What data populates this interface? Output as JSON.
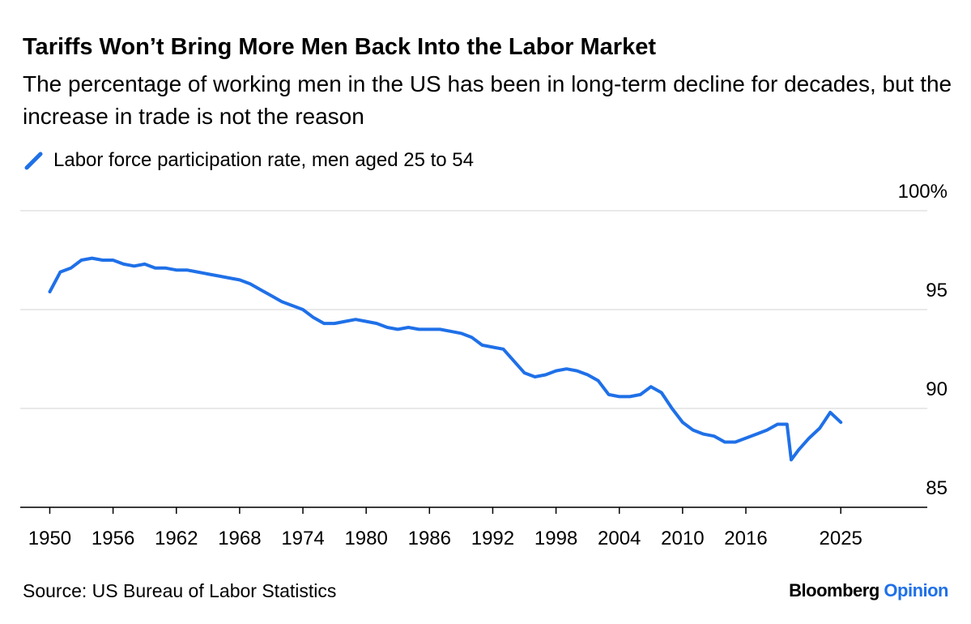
{
  "chart_data": {
    "type": "line",
    "title": "Tariffs Won’t Bring More Men Back Into the Labor Market",
    "subtitle": "The percentage of working men in the US has been in long-term decline for decades, but the increase in trade is not the reason",
    "source": "Source: US Bureau of Labor Statistics",
    "logo": {
      "brand": "Bloomberg",
      "label": "Opinion"
    },
    "x": [
      1950,
      1951,
      1952,
      1953,
      1954,
      1955,
      1956,
      1957,
      1958,
      1959,
      1960,
      1961,
      1962,
      1963,
      1964,
      1965,
      1966,
      1967,
      1968,
      1969,
      1970,
      1971,
      1972,
      1973,
      1974,
      1975,
      1976,
      1977,
      1978,
      1979,
      1980,
      1981,
      1982,
      1983,
      1984,
      1985,
      1986,
      1987,
      1988,
      1989,
      1990,
      1991,
      1992,
      1993,
      1994,
      1995,
      1996,
      1997,
      1998,
      1999,
      2000,
      2001,
      2002,
      2003,
      2004,
      2005,
      2006,
      2007,
      2008,
      2009,
      2010,
      2011,
      2012,
      2013,
      2014,
      2015,
      2016,
      2017,
      2018,
      2019,
      2019.9,
      2020.3,
      2021,
      2022,
      2023,
      2024,
      2025
    ],
    "series": [
      {
        "name": "Labor force participation rate, men aged 25 to 54",
        "color": "#1f70e8",
        "values": [
          95.9,
          96.9,
          97.1,
          97.5,
          97.6,
          97.5,
          97.5,
          97.3,
          97.2,
          97.3,
          97.1,
          97.1,
          97.0,
          97.0,
          96.9,
          96.8,
          96.7,
          96.6,
          96.5,
          96.3,
          96.0,
          95.7,
          95.4,
          95.2,
          95.0,
          94.6,
          94.3,
          94.3,
          94.4,
          94.5,
          94.4,
          94.3,
          94.1,
          94.0,
          94.1,
          94.0,
          94.0,
          94.0,
          93.9,
          93.8,
          93.6,
          93.2,
          93.1,
          93.0,
          92.4,
          91.8,
          91.6,
          91.7,
          91.9,
          92.0,
          91.9,
          91.7,
          91.4,
          90.7,
          90.6,
          90.6,
          90.7,
          91.1,
          90.8,
          90.0,
          89.3,
          88.9,
          88.7,
          88.6,
          88.3,
          88.3,
          88.5,
          88.7,
          88.9,
          89.2,
          89.2,
          87.4,
          87.9,
          88.5,
          89.0,
          89.8,
          89.3
        ]
      }
    ],
    "xlim": [
      1947.2,
      2033.2
    ],
    "xticks": [
      1950,
      1956,
      1962,
      1968,
      1974,
      1980,
      1986,
      1992,
      1998,
      2004,
      2010,
      2016,
      2025
    ],
    "ylim": [
      85,
      100
    ],
    "yticks": [
      85,
      90,
      95,
      {
        "value": 100,
        "label": "100%"
      }
    ],
    "grid": true
  }
}
